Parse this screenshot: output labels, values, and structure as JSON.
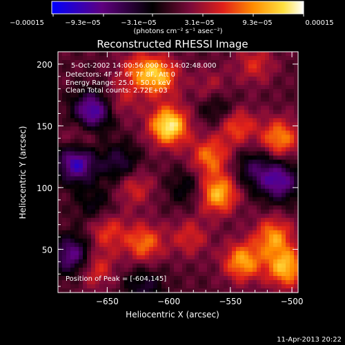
{
  "chart_data": {
    "type": "heatmap",
    "title": "Reconstructed RHESSI Image",
    "xlabel": "Heliocentric X (arcsec)",
    "ylabel": "Heliocentric Y (arcsec)",
    "xlim": [
      -690,
      -495
    ],
    "ylim": [
      15,
      210
    ],
    "x_ticks": [
      -650,
      -600,
      -550,
      -500
    ],
    "x_tick_labels": [
      "−650",
      "−600",
      "−550",
      "−500"
    ],
    "y_ticks": [
      50,
      100,
      150,
      200
    ],
    "y_tick_labels": [
      "50",
      "100",
      "150",
      "200"
    ],
    "colorbar": {
      "range": [
        -0.00015,
        0.00015
      ],
      "tick_labels": [
        "−0.00015",
        "−9.3e−05",
        "−3.1e−05",
        "3.1e−05",
        "9.3e−05",
        "0.00015"
      ],
      "unit_label": "(photons cm⁻² s⁻¹ asec⁻²)",
      "colors": [
        "#0000ff",
        "#5f007f",
        "#000000",
        "#7a0a3a",
        "#e0201a",
        "#ff8c00",
        "#ffe040",
        "#ffffff"
      ]
    },
    "annotations": [
      "5-Oct-2002 14:00:56.000 to 14:02:48.000",
      "Detectors: 4F 5F 6F 7F 8F, Att 0",
      "Energy Range: 25.0 - 50.0 keV",
      "Clean    Total counts: 2.72E+03"
    ],
    "peak_label": "Position of Peak = [-604,145]",
    "peak": [
      -604,
      145
    ],
    "sources": [
      {
        "x": -600,
        "y": 150,
        "value": 0.00014
      },
      {
        "x": -608,
        "y": 190,
        "value": 0.0001
      },
      {
        "x": -625,
        "y": 195,
        "value": 6e-05
      },
      {
        "x": -560,
        "y": 95,
        "value": 0.00011
      },
      {
        "x": -567,
        "y": 125,
        "value": 8e-05
      },
      {
        "x": -540,
        "y": 40,
        "value": 0.0001
      },
      {
        "x": -505,
        "y": 35,
        "value": 0.00011
      },
      {
        "x": -515,
        "y": 60,
        "value": 9e-05
      },
      {
        "x": -510,
        "y": 140,
        "value": 9e-05
      },
      {
        "x": -545,
        "y": 150,
        "value": 7e-05
      },
      {
        "x": -620,
        "y": 55,
        "value": 8e-05
      },
      {
        "x": -650,
        "y": 65,
        "value": 6e-05
      },
      {
        "x": -628,
        "y": 100,
        "value": 5e-05
      },
      {
        "x": -672,
        "y": 140,
        "value": 4e-05
      },
      {
        "x": -583,
        "y": 60,
        "value": 5e-05
      },
      {
        "x": -660,
        "y": 35,
        "value": 6e-05
      },
      {
        "x": -640,
        "y": 170,
        "value": 4e-05
      },
      {
        "x": -565,
        "y": 180,
        "value": 4e-05
      },
      {
        "x": -530,
        "y": 200,
        "value": 5e-05
      },
      {
        "x": -662,
        "y": 162,
        "value": -0.00012
      },
      {
        "x": -675,
        "y": 120,
        "value": -0.00012
      },
      {
        "x": -640,
        "y": 120,
        "value": -6e-05
      },
      {
        "x": -678,
        "y": 45,
        "value": -0.0001
      },
      {
        "x": -510,
        "y": 105,
        "value": -0.0001
      },
      {
        "x": -530,
        "y": 115,
        "value": -6e-05
      },
      {
        "x": -560,
        "y": 165,
        "value": -5e-05
      },
      {
        "x": -620,
        "y": 20,
        "value": -5e-05
      },
      {
        "x": -585,
        "y": 100,
        "value": -4e-05
      },
      {
        "x": -660,
        "y": 85,
        "value": -4e-05
      }
    ]
  },
  "footer": {
    "timestamp": "11-Apr-2013 20:22"
  }
}
